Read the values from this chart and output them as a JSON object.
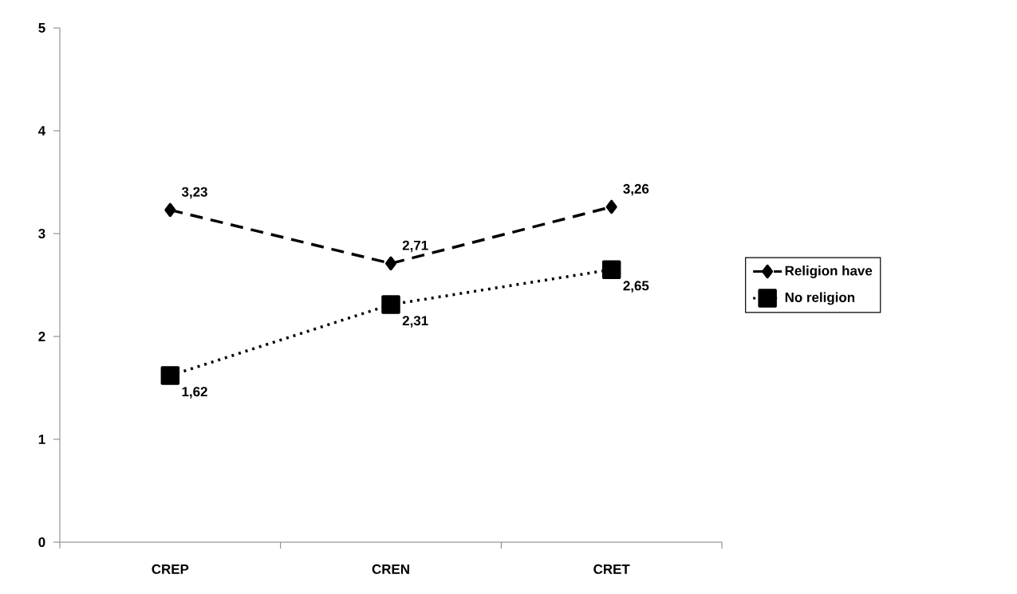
{
  "chart_data": {
    "type": "line",
    "categories": [
      "CREP",
      "CREN",
      "CRET"
    ],
    "series": [
      {
        "name": "Religion have",
        "color": "#000000",
        "values": [
          3.23,
          2.71,
          3.26
        ],
        "value_labels": [
          "3,23",
          "2,71",
          "3,26"
        ],
        "marker": "diamond",
        "line_style": "dashed"
      },
      {
        "name": "No religion",
        "color": "#000000",
        "values": [
          1.62,
          2.31,
          2.65
        ],
        "value_labels": [
          "1,62",
          "2,31",
          "2,65"
        ],
        "marker": "square",
        "line_style": "dotted"
      }
    ],
    "ylim": [
      0,
      5
    ],
    "yticks": [
      0,
      1,
      2,
      3,
      4,
      5
    ],
    "grid": false,
    "legend": "right"
  }
}
